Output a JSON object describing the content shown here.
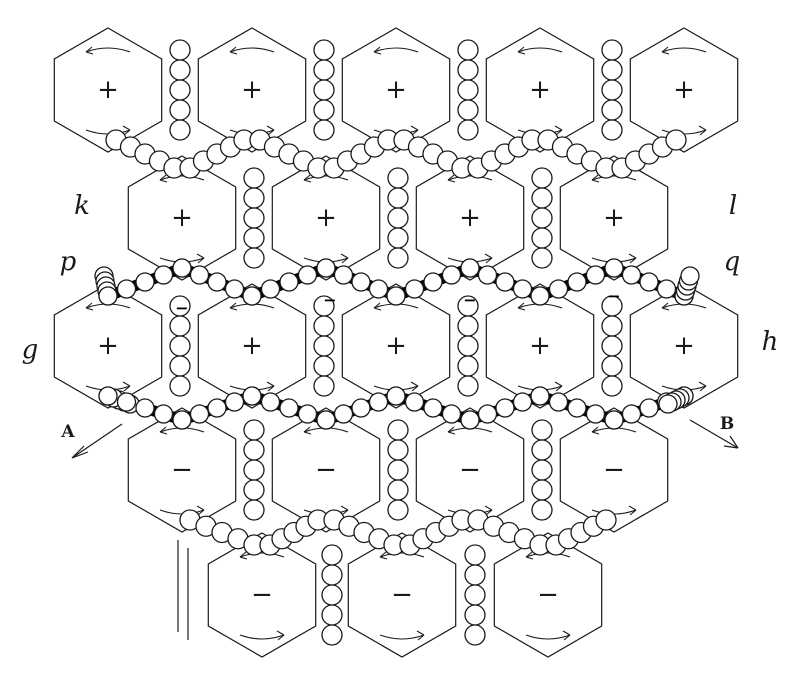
{
  "figure": {
    "labels": {
      "k": "k",
      "l": "l",
      "p": "p",
      "q": "q",
      "g": "g",
      "h": "h",
      "A": "A",
      "B": "B"
    },
    "signs": {
      "positive": "+",
      "negative": "−"
    },
    "rows": [
      {
        "row": 1,
        "cells": [
          "+",
          "+",
          "+",
          "+",
          "+"
        ]
      },
      {
        "row": 2,
        "cells": [
          "+",
          "+",
          "+",
          "+"
        ]
      },
      {
        "row": 3,
        "cells": [
          "+",
          "+",
          "+",
          "+",
          "+"
        ]
      },
      {
        "row": 4,
        "cells": [
          "−",
          "−",
          "−",
          "−"
        ]
      },
      {
        "row": 5,
        "cells": [
          "−",
          "−",
          "−"
        ]
      }
    ],
    "chain_bead_marks": [
      "−",
      "−",
      "−",
      "−"
    ]
  }
}
